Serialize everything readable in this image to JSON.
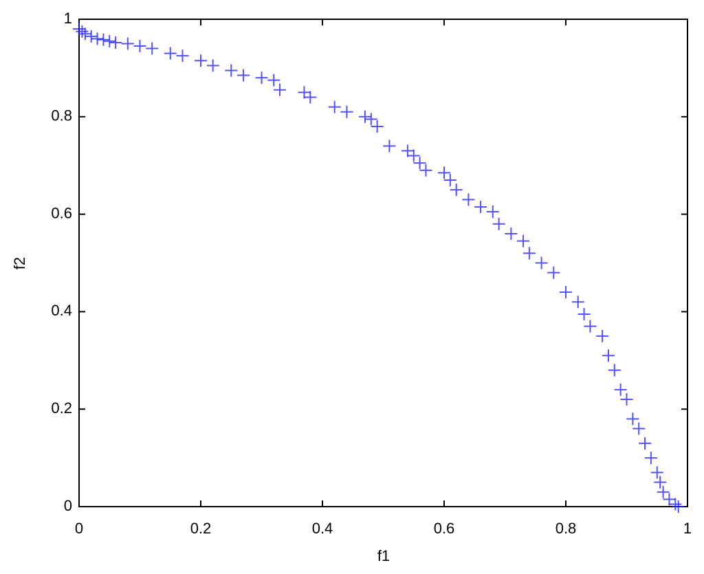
{
  "chart_data": {
    "type": "scatter",
    "x_label": "f1",
    "y_label": "f2",
    "x": [
      0,
      0.005,
      0.01,
      0.02,
      0.03,
      0.04,
      0.05,
      0.06,
      0.08,
      0.1,
      0.12,
      0.15,
      0.17,
      0.2,
      0.22,
      0.25,
      0.27,
      0.3,
      0.32,
      0.33,
      0.37,
      0.38,
      0.42,
      0.44,
      0.47,
      0.48,
      0.49,
      0.51,
      0.54,
      0.55,
      0.56,
      0.57,
      0.6,
      0.61,
      0.62,
      0.64,
      0.66,
      0.68,
      0.69,
      0.71,
      0.73,
      0.74,
      0.76,
      0.78,
      0.8,
      0.82,
      0.83,
      0.84,
      0.86,
      0.87,
      0.88,
      0.89,
      0.9,
      0.91,
      0.92,
      0.93,
      0.94,
      0.95,
      0.955,
      0.96,
      0.97,
      0.98,
      0.985
    ],
    "values": [
      0.98,
      0.975,
      0.97,
      0.965,
      0.96,
      0.958,
      0.955,
      0.952,
      0.95,
      0.945,
      0.94,
      0.93,
      0.925,
      0.915,
      0.905,
      0.895,
      0.885,
      0.88,
      0.875,
      0.855,
      0.85,
      0.84,
      0.82,
      0.81,
      0.8,
      0.795,
      0.78,
      0.74,
      0.73,
      0.72,
      0.705,
      0.69,
      0.685,
      0.67,
      0.65,
      0.63,
      0.615,
      0.605,
      0.58,
      0.56,
      0.545,
      0.52,
      0.5,
      0.48,
      0.44,
      0.42,
      0.395,
      0.37,
      0.35,
      0.31,
      0.28,
      0.24,
      0.22,
      0.18,
      0.16,
      0.13,
      0.1,
      0.07,
      0.05,
      0.03,
      0.015,
      0.005,
      0
    ],
    "color": "#1a1aff",
    "xlim": [
      0,
      1
    ],
    "xticks": [
      0,
      0.2,
      0.4,
      0.6,
      0.8,
      1
    ],
    "ylim": [
      0,
      1
    ],
    "yticks": [
      0,
      0.2,
      0.4,
      0.6,
      0.8,
      1
    ],
    "grid": false
  }
}
